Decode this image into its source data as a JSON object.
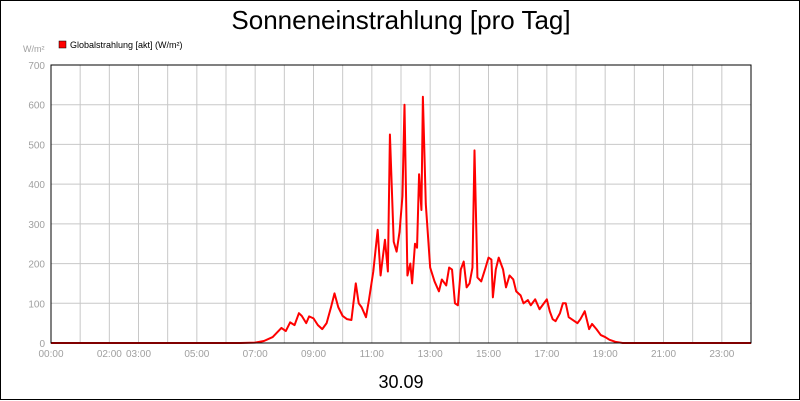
{
  "chart_data": {
    "type": "line",
    "title": "Sonneneinstrahlung [pro Tag]",
    "ylabel": "W/m²",
    "xlabel": "30.09",
    "ylim": [
      0,
      700
    ],
    "yticks": [
      0,
      100,
      200,
      300,
      400,
      500,
      600,
      700
    ],
    "xlim": [
      0,
      24
    ],
    "xticks": [
      {
        "h": 0,
        "label": "00:00"
      },
      {
        "h": 2,
        "label": "02:00"
      },
      {
        "h": 3,
        "label": "03:00"
      },
      {
        "h": 5,
        "label": "05:00"
      },
      {
        "h": 7,
        "label": "07:00"
      },
      {
        "h": 9,
        "label": "09:00"
      },
      {
        "h": 11,
        "label": "11:00"
      },
      {
        "h": 13,
        "label": "13:00"
      },
      {
        "h": 15,
        "label": "15:00"
      },
      {
        "h": 17,
        "label": "17:00"
      },
      {
        "h": 19,
        "label": "19:00"
      },
      {
        "h": 21,
        "label": "21:00"
      },
      {
        "h": 23,
        "label": "23:00"
      }
    ],
    "gridlines_x": [
      1,
      2,
      3,
      4,
      5,
      6,
      7,
      8,
      9,
      10,
      11,
      12,
      13,
      14,
      15,
      16,
      17,
      18,
      19,
      20,
      21,
      22,
      23
    ],
    "grid": true,
    "legend": "top-left",
    "series": [
      {
        "name": "Globalstrahlung [akt] (W/m²)",
        "color": "#ff0000",
        "points": [
          [
            0,
            0
          ],
          [
            6.5,
            0
          ],
          [
            7.0,
            1
          ],
          [
            7.3,
            5
          ],
          [
            7.6,
            15
          ],
          [
            7.9,
            38
          ],
          [
            8.05,
            30
          ],
          [
            8.2,
            52
          ],
          [
            8.35,
            45
          ],
          [
            8.5,
            75
          ],
          [
            8.6,
            68
          ],
          [
            8.75,
            50
          ],
          [
            8.85,
            67
          ],
          [
            9.0,
            62
          ],
          [
            9.15,
            45
          ],
          [
            9.3,
            35
          ],
          [
            9.45,
            50
          ],
          [
            9.6,
            90
          ],
          [
            9.72,
            125
          ],
          [
            9.85,
            90
          ],
          [
            10.0,
            68
          ],
          [
            10.15,
            60
          ],
          [
            10.3,
            58
          ],
          [
            10.45,
            150
          ],
          [
            10.55,
            100
          ],
          [
            10.65,
            90
          ],
          [
            10.8,
            65
          ],
          [
            10.9,
            108
          ],
          [
            11.05,
            180
          ],
          [
            11.2,
            285
          ],
          [
            11.3,
            170
          ],
          [
            11.45,
            260
          ],
          [
            11.55,
            180
          ],
          [
            11.62,
            525
          ],
          [
            11.75,
            255
          ],
          [
            11.85,
            230
          ],
          [
            11.95,
            280
          ],
          [
            12.05,
            370
          ],
          [
            12.12,
            600
          ],
          [
            12.22,
            170
          ],
          [
            12.32,
            200
          ],
          [
            12.38,
            150
          ],
          [
            12.48,
            250
          ],
          [
            12.55,
            240
          ],
          [
            12.62,
            425
          ],
          [
            12.7,
            335
          ],
          [
            12.75,
            620
          ],
          [
            12.85,
            350
          ],
          [
            13.0,
            190
          ],
          [
            13.15,
            155
          ],
          [
            13.3,
            130
          ],
          [
            13.4,
            160
          ],
          [
            13.55,
            145
          ],
          [
            13.65,
            190
          ],
          [
            13.75,
            185
          ],
          [
            13.85,
            100
          ],
          [
            13.95,
            95
          ],
          [
            14.05,
            185
          ],
          [
            14.15,
            205
          ],
          [
            14.25,
            140
          ],
          [
            14.35,
            150
          ],
          [
            14.45,
            190
          ],
          [
            14.52,
            485
          ],
          [
            14.62,
            165
          ],
          [
            14.75,
            155
          ],
          [
            14.9,
            190
          ],
          [
            15.0,
            215
          ],
          [
            15.1,
            210
          ],
          [
            15.15,
            115
          ],
          [
            15.25,
            185
          ],
          [
            15.35,
            215
          ],
          [
            15.5,
            185
          ],
          [
            15.6,
            140
          ],
          [
            15.72,
            170
          ],
          [
            15.85,
            160
          ],
          [
            15.95,
            130
          ],
          [
            16.1,
            120
          ],
          [
            16.2,
            100
          ],
          [
            16.35,
            108
          ],
          [
            16.45,
            95
          ],
          [
            16.6,
            110
          ],
          [
            16.75,
            85
          ],
          [
            16.85,
            95
          ],
          [
            17.0,
            110
          ],
          [
            17.1,
            80
          ],
          [
            17.2,
            60
          ],
          [
            17.3,
            55
          ],
          [
            17.45,
            75
          ],
          [
            17.55,
            100
          ],
          [
            17.65,
            100
          ],
          [
            17.75,
            65
          ],
          [
            17.85,
            60
          ],
          [
            17.95,
            55
          ],
          [
            18.05,
            50
          ],
          [
            18.15,
            60
          ],
          [
            18.3,
            80
          ],
          [
            18.45,
            35
          ],
          [
            18.55,
            48
          ],
          [
            18.7,
            35
          ],
          [
            18.85,
            20
          ],
          [
            19.0,
            15
          ],
          [
            19.15,
            8
          ],
          [
            19.35,
            3
          ],
          [
            19.6,
            0
          ],
          [
            24.0,
            0
          ]
        ]
      }
    ]
  }
}
